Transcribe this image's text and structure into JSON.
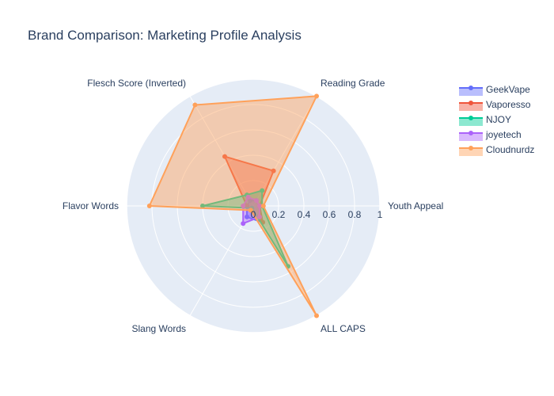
{
  "chart_data": {
    "type": "radar",
    "title": "Brand Comparison: Marketing Profile Analysis",
    "categories": [
      "Youth Appeal",
      "Reading Grade",
      "Flesch Score (Inverted)",
      "Flavor Words",
      "Slang Words",
      "ALL CAPS"
    ],
    "radial_range": [
      0,
      1
    ],
    "radial_ticks": [
      "0",
      "0.2",
      "0.4",
      "0.6",
      "0.8",
      "1"
    ],
    "legend_position": "top-right",
    "series": [
      {
        "name": "GeekVape",
        "color": "#636efa",
        "values": [
          0.05,
          0.05,
          0.05,
          0.05,
          0.1,
          0.15
        ]
      },
      {
        "name": "Vaporesso",
        "color": "#ef553b",
        "values": [
          0.05,
          0.32,
          0.45,
          0.05,
          0.03,
          0.15
        ]
      },
      {
        "name": "NJOY",
        "color": "#00cc96",
        "values": [
          0.07,
          0.14,
          0.1,
          0.4,
          0.02,
          0.55
        ]
      },
      {
        "name": "joyetech",
        "color": "#ab63fa",
        "values": [
          0.05,
          0.05,
          0.08,
          0.08,
          0.16,
          0.1
        ]
      },
      {
        "name": "Cloudnurdz",
        "color": "#ffa15a",
        "values": [
          0.08,
          1.0,
          0.92,
          0.82,
          0.04,
          1.0
        ]
      }
    ]
  }
}
